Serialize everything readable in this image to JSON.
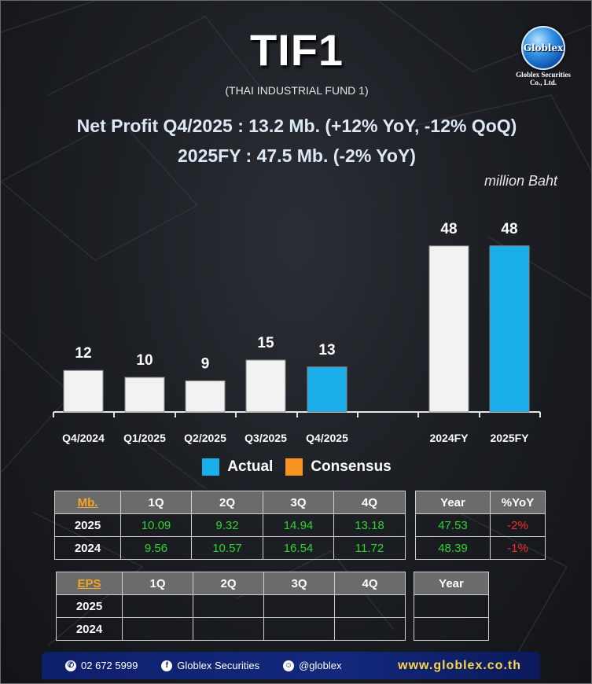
{
  "header": {
    "ticker": "TIF1",
    "fund_name": "(THAI INDUSTRIAL FUND 1)",
    "headline1": "Net Profit  Q4/2025 : 13.2 Mb. (+12% YoY, -12% QoQ)",
    "headline2": "2025FY : 47.5 Mb. (-2% YoY)",
    "unit": "million Baht"
  },
  "logo": {
    "word": "Globlex",
    "company": "Globlex Securities Co., Ltd."
  },
  "colors": {
    "actual": "#1aaeea",
    "consensus": "#f7931e",
    "prior": "#f2f2f2",
    "positive": "#2fd42f",
    "negative": "#ff2a2a",
    "header_cell": "#6b6b6b"
  },
  "chart_data": {
    "type": "bar",
    "categories": [
      "Q4/2024",
      "Q1/2025",
      "Q2/2025",
      "Q3/2025",
      "Q4/2025",
      "",
      "2024FY",
      "2025FY"
    ],
    "values": [
      12,
      10,
      9,
      15,
      13,
      null,
      48,
      48
    ],
    "data_labels": [
      "12",
      "10",
      "9",
      "15",
      "13",
      "",
      "48",
      "48"
    ],
    "highlight": [
      false,
      false,
      false,
      false,
      true,
      false,
      false,
      true
    ],
    "legend": [
      "Actual",
      "Consensus"
    ],
    "legend_placement": "bottom",
    "grid": false
  },
  "table_profit": {
    "corner": "Mb.",
    "headers": [
      "1Q",
      "2Q",
      "3Q",
      "4Q"
    ],
    "rows": [
      {
        "year": "2025",
        "values": [
          "10.09",
          "9.32",
          "14.94",
          "13.18"
        ]
      },
      {
        "year": "2024",
        "values": [
          "9.56",
          "10.57",
          "16.54",
          "11.72"
        ]
      }
    ]
  },
  "table_profit_year": {
    "headers": [
      "Year",
      "%YoY"
    ],
    "rows": [
      {
        "year_value": "47.53",
        "yoy": "-2%"
      },
      {
        "year_value": "48.39",
        "yoy": "-1%"
      }
    ]
  },
  "table_eps": {
    "corner": "EPS",
    "headers": [
      "1Q",
      "2Q",
      "3Q",
      "4Q"
    ],
    "rows": [
      {
        "year": "2025",
        "values": [
          "",
          "",
          "",
          ""
        ]
      },
      {
        "year": "2024",
        "values": [
          "",
          "",
          "",
          ""
        ]
      }
    ]
  },
  "table_eps_year": {
    "header": "Year",
    "rows": [
      {
        "value": ""
      },
      {
        "value": ""
      }
    ]
  },
  "footer": {
    "phone": "02 672 5999",
    "facebook": "Globlex Securities",
    "line": "@globlex",
    "website": "www.globlex.co.th"
  }
}
